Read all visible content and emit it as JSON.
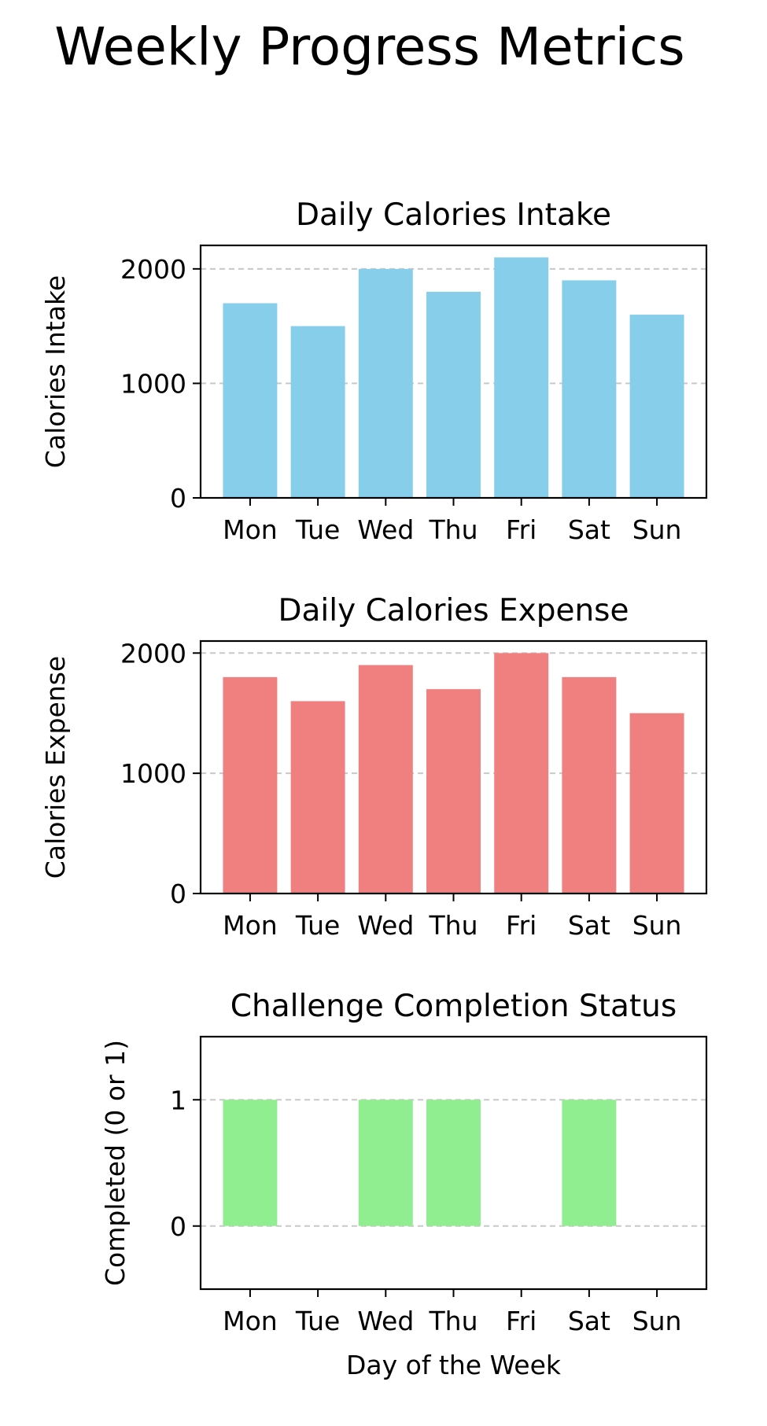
{
  "figure": {
    "title": "Weekly Progress Metrics"
  },
  "chart_data": [
    {
      "type": "bar",
      "title": "Daily Calories Intake",
      "xlabel": "",
      "ylabel": "Calories Intake",
      "categories": [
        "Mon",
        "Tue",
        "Wed",
        "Thu",
        "Fri",
        "Sat",
        "Sun"
      ],
      "values": [
        1700,
        1500,
        2000,
        1800,
        2100,
        1900,
        1600
      ],
      "ylim": [
        0,
        2205
      ],
      "yticks": [
        0,
        1000,
        2000
      ],
      "grid": "y-dashed",
      "color": "#87ceeb"
    },
    {
      "type": "bar",
      "title": "Daily Calories Expense",
      "xlabel": "",
      "ylabel": "Calories Expense",
      "categories": [
        "Mon",
        "Tue",
        "Wed",
        "Thu",
        "Fri",
        "Sat",
        "Sun"
      ],
      "values": [
        1800,
        1600,
        1900,
        1700,
        2000,
        1800,
        1500
      ],
      "ylim": [
        0,
        2100
      ],
      "yticks": [
        0,
        1000,
        2000
      ],
      "grid": "y-dashed",
      "color": "#f08080"
    },
    {
      "type": "bar",
      "title": "Challenge Completion Status",
      "xlabel": "Day of the Week",
      "ylabel": "Completed (0 or 1)",
      "categories": [
        "Mon",
        "Tue",
        "Wed",
        "Thu",
        "Fri",
        "Sat",
        "Sun"
      ],
      "values": [
        1,
        0,
        1,
        1,
        0,
        1,
        0
      ],
      "ylim": [
        -0.5,
        1.5
      ],
      "yticks": [
        0,
        1
      ],
      "grid": "y-dashed",
      "color": "#90ee90"
    }
  ]
}
